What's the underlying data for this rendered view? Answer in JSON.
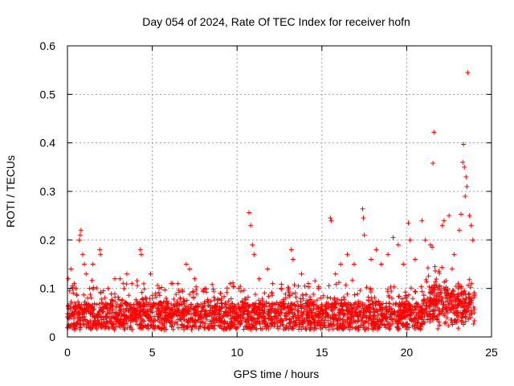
{
  "chart_data": {
    "type": "scatter",
    "title": "Day 054 of 2024, Rate Of TEC Index for receiver hofn",
    "xlabel": "GPS time / hours",
    "ylabel": "ROTI / TECUs",
    "xlim": [
      0,
      25
    ],
    "ylim": [
      0,
      0.6
    ],
    "xticks": [
      0,
      5,
      10,
      15,
      20,
      25
    ],
    "yticks": [
      0,
      0.1,
      0.2,
      0.3,
      0.4,
      0.5,
      0.6
    ],
    "xtick_labels": [
      "0",
      "5",
      "10",
      "15",
      "20",
      "25"
    ],
    "ytick_labels": [
      "0",
      "0.1",
      "0.2",
      "0.3",
      "0.4",
      "0.5",
      "0.6"
    ],
    "grid": true,
    "marker": "+",
    "marker_color": "#ff0000",
    "series": [
      {
        "name": "ROTI",
        "points": [
          [
            0.05,
            0.12
          ],
          [
            0.2,
            0.14
          ],
          [
            0.4,
            0.11
          ],
          [
            0.5,
            0.1
          ],
          [
            0.7,
            0.2
          ],
          [
            0.75,
            0.21
          ],
          [
            0.8,
            0.22
          ],
          [
            0.9,
            0.17
          ],
          [
            1.0,
            0.15
          ],
          [
            1.1,
            0.13
          ],
          [
            1.5,
            0.15
          ],
          [
            1.9,
            0.18
          ],
          [
            1.95,
            0.17
          ],
          [
            2.4,
            0.1
          ],
          [
            2.8,
            0.12
          ],
          [
            3.1,
            0.12
          ],
          [
            3.5,
            0.13
          ],
          [
            3.8,
            0.11
          ],
          [
            4.3,
            0.18
          ],
          [
            4.35,
            0.17
          ],
          [
            4.9,
            0.13
          ],
          [
            5.4,
            0.1
          ],
          [
            6.2,
            0.11
          ],
          [
            7.0,
            0.15
          ],
          [
            7.2,
            0.14
          ],
          [
            7.5,
            0.12
          ],
          [
            8.1,
            0.1
          ],
          [
            9.0,
            0.09
          ],
          [
            9.6,
            0.11
          ],
          [
            10.1,
            0.1
          ],
          [
            10.7,
            0.256
          ],
          [
            10.8,
            0.23
          ],
          [
            10.9,
            0.19
          ],
          [
            11.0,
            0.17
          ],
          [
            11.3,
            0.12
          ],
          [
            11.8,
            0.14
          ],
          [
            12.1,
            0.11
          ],
          [
            12.6,
            0.1
          ],
          [
            13.2,
            0.18
          ],
          [
            13.3,
            0.16
          ],
          [
            13.8,
            0.13
          ],
          [
            14.2,
            0.11
          ],
          [
            14.8,
            0.1
          ],
          [
            15.5,
            0.245
          ],
          [
            15.55,
            0.24
          ],
          [
            15.8,
            0.13
          ],
          [
            16.1,
            0.15
          ],
          [
            16.5,
            0.17
          ],
          [
            16.9,
            0.15
          ],
          [
            17.4,
            0.264
          ],
          [
            17.45,
            0.245
          ],
          [
            17.5,
            0.21
          ],
          [
            17.9,
            0.16
          ],
          [
            18.2,
            0.18
          ],
          [
            18.5,
            0.15
          ],
          [
            18.9,
            0.17
          ],
          [
            19.2,
            0.205
          ],
          [
            19.5,
            0.19
          ],
          [
            19.8,
            0.15
          ],
          [
            20.1,
            0.235
          ],
          [
            20.2,
            0.2
          ],
          [
            20.5,
            0.16
          ],
          [
            20.9,
            0.24
          ],
          [
            21.1,
            0.2
          ],
          [
            21.4,
            0.19
          ],
          [
            21.5,
            0.185
          ],
          [
            21.6,
            0.422
          ],
          [
            21.55,
            0.358
          ],
          [
            22.1,
            0.23
          ],
          [
            22.2,
            0.24
          ],
          [
            22.5,
            0.25
          ],
          [
            22.8,
            0.17
          ],
          [
            23.1,
            0.22
          ],
          [
            23.2,
            0.253
          ],
          [
            23.3,
            0.36
          ],
          [
            23.35,
            0.397
          ],
          [
            23.4,
            0.35
          ],
          [
            23.45,
            0.29
          ],
          [
            23.5,
            0.33
          ],
          [
            23.55,
            0.31
          ],
          [
            23.6,
            0.545
          ],
          [
            23.7,
            0.25
          ],
          [
            23.8,
            0.23
          ],
          [
            23.9,
            0.2
          ]
        ]
      }
    ]
  }
}
